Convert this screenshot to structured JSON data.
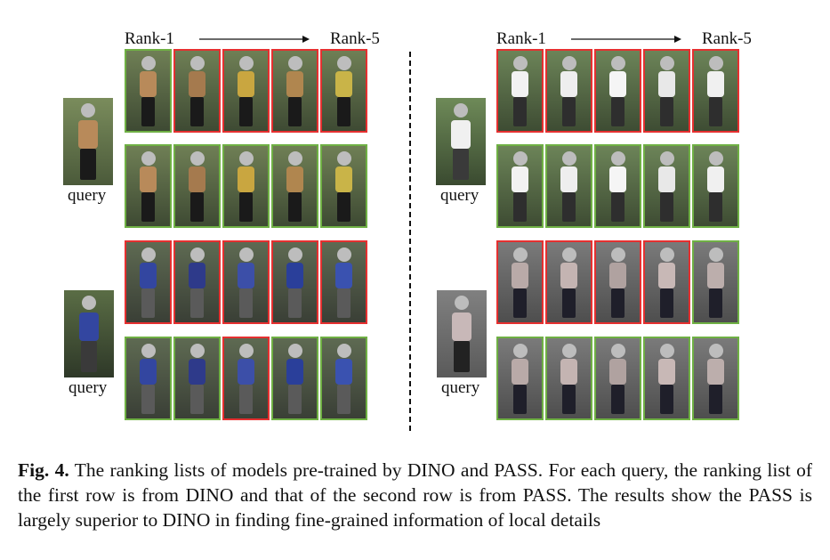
{
  "header": {
    "rank_start": "Rank-1",
    "rank_end": "Rank-5"
  },
  "query_label": "query",
  "caption": {
    "figure_label": "Fig. 4.",
    "text": "The ranking lists of models pre-trained by DINO and PASS. For each query, the ranking list of the first row is from DINO and that of the second row is from PASS. The results show the PASS is largely superior to DINO in finding fine-grained information of local details"
  },
  "colors": {
    "correct": "#6fb044",
    "wrong": "#e53030"
  },
  "figure_groups": [
    {
      "name": "left-top",
      "rows": [
        {
          "model": "DINO",
          "results": [
            "correct",
            "wrong",
            "wrong",
            "wrong",
            "wrong"
          ]
        },
        {
          "model": "PASS",
          "results": [
            "correct",
            "correct",
            "correct",
            "correct",
            "correct"
          ]
        }
      ]
    },
    {
      "name": "left-bottom",
      "rows": [
        {
          "model": "DINO",
          "results": [
            "wrong",
            "wrong",
            "wrong",
            "wrong",
            "wrong"
          ]
        },
        {
          "model": "PASS",
          "results": [
            "correct",
            "correct",
            "wrong",
            "correct",
            "correct"
          ]
        }
      ]
    },
    {
      "name": "right-top",
      "rows": [
        {
          "model": "DINO",
          "results": [
            "wrong",
            "wrong",
            "wrong",
            "wrong",
            "wrong"
          ]
        },
        {
          "model": "PASS",
          "results": [
            "correct",
            "correct",
            "correct",
            "correct",
            "correct"
          ]
        }
      ]
    },
    {
      "name": "right-bottom",
      "rows": [
        {
          "model": "DINO",
          "results": [
            "wrong",
            "wrong",
            "wrong",
            "wrong",
            "correct"
          ]
        },
        {
          "model": "PASS",
          "results": [
            "correct",
            "correct",
            "correct",
            "correct",
            "correct"
          ]
        }
      ]
    }
  ]
}
